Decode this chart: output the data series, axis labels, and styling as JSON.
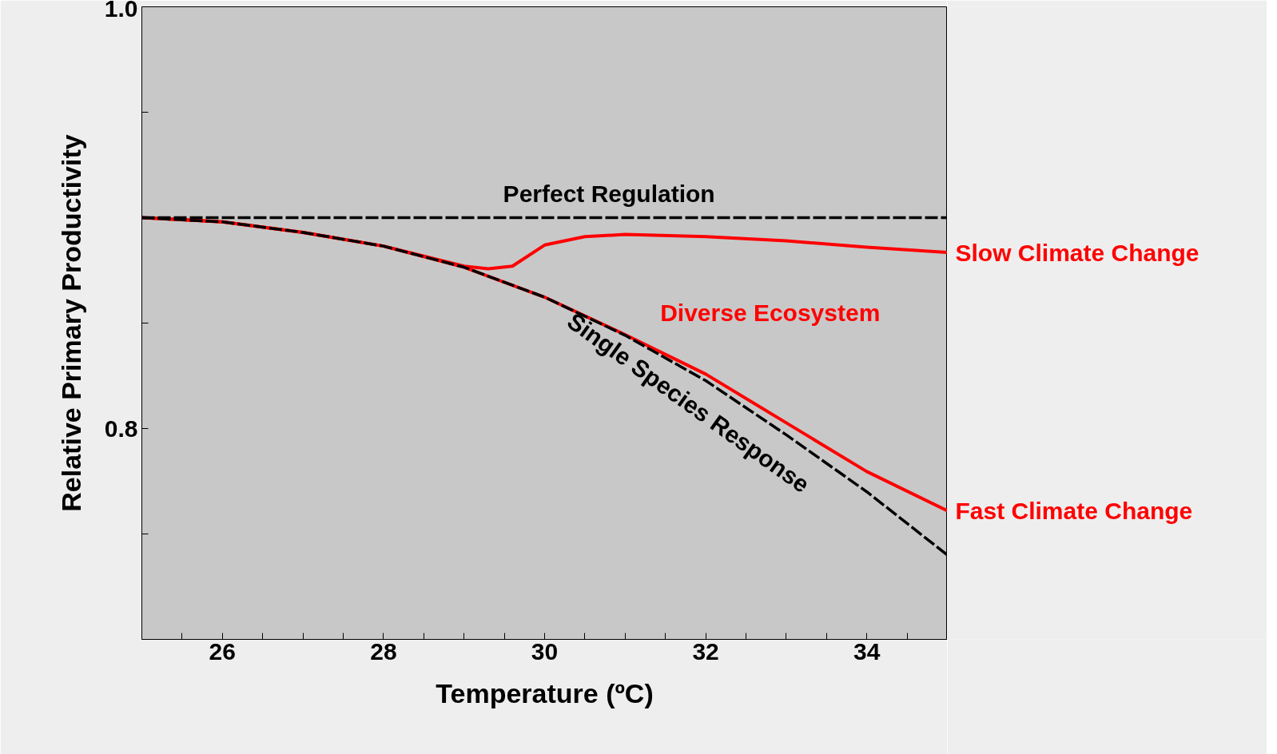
{
  "chart_data": {
    "type": "line",
    "xlabel": "Temperature (ºC)",
    "ylabel": "Relative Primary Productivity",
    "xlim": [
      25,
      35
    ],
    "ylim": [
      0.7,
      1.0
    ],
    "xticks": [
      {
        "value": 25.5,
        "label": null
      },
      26,
      {
        "value": 26.5,
        "label": null
      },
      {
        "value": 27,
        "label": null
      },
      {
        "value": 27.5,
        "label": null
      },
      28,
      {
        "value": 28.5,
        "label": null
      },
      {
        "value": 29,
        "label": null
      },
      {
        "value": 29.5,
        "label": null
      },
      30,
      {
        "value": 30.5,
        "label": null
      },
      {
        "value": 31,
        "label": null
      },
      {
        "value": 31.5,
        "label": null
      },
      32,
      {
        "value": 32.5,
        "label": null
      },
      {
        "value": 33,
        "label": null
      },
      {
        "value": 33.5,
        "label": null
      },
      34,
      {
        "value": 34.5,
        "label": null
      }
    ],
    "yticks": [
      {
        "value": 0.75,
        "label": null
      },
      0.8,
      {
        "value": 0.85,
        "label": null
      },
      {
        "value": 0.9,
        "label": null
      },
      {
        "value": 0.95,
        "label": null
      },
      {
        "value": 1.0,
        "label": "1.0"
      }
    ],
    "grid": false,
    "marker": "none",
    "series": [
      {
        "name": "Perfect Regulation",
        "color": "#000000",
        "line_style": "dashed",
        "x": [
          25,
          35
        ],
        "values": [
          0.9,
          0.9
        ]
      },
      {
        "name": "Single Species Response",
        "color": "#000000",
        "line_style": "dashed",
        "x": [
          25,
          26,
          27,
          28,
          29,
          30,
          31,
          32,
          33,
          34,
          35
        ],
        "values": [
          0.9,
          0.898,
          0.893,
          0.8865,
          0.8765,
          0.8623,
          0.8442,
          0.8227,
          0.797,
          0.77,
          0.74
        ]
      },
      {
        "name": "Slow Climate Change",
        "color": "#ff0000",
        "line_style": "solid",
        "x": [
          25,
          26,
          27,
          28,
          29,
          29.3,
          29.6,
          30,
          30.5,
          31,
          32,
          33,
          34,
          35
        ],
        "values": [
          0.9,
          0.898,
          0.893,
          0.8865,
          0.877,
          0.8758,
          0.877,
          0.887,
          0.891,
          0.892,
          0.891,
          0.889,
          0.886,
          0.8835
        ]
      },
      {
        "name": "Fast Climate Change",
        "color": "#ff0000",
        "line_style": "solid",
        "x": [
          25,
          26,
          27,
          28,
          29,
          30,
          31,
          32,
          33,
          34,
          35
        ],
        "values": [
          0.9,
          0.898,
          0.893,
          0.8865,
          0.8765,
          0.8623,
          0.8445,
          0.8258,
          0.8027,
          0.7796,
          0.761
        ]
      }
    ],
    "annotations": [
      "Diverse Ecosystem"
    ]
  }
}
